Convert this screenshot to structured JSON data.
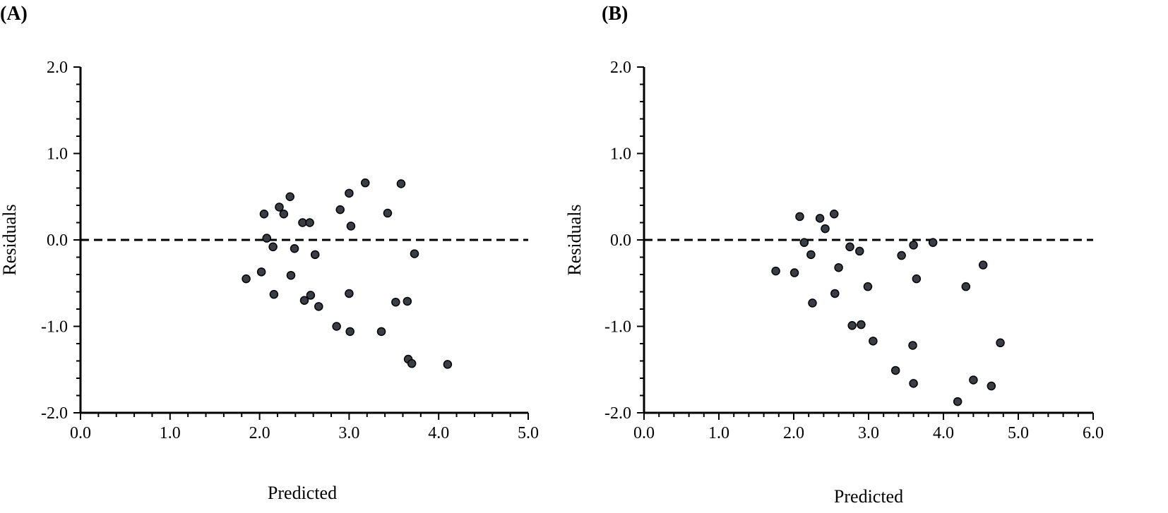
{
  "chart_data": [
    {
      "type": "scatter",
      "panel_label": "(A)",
      "xlabel": "Predicted",
      "ylabel": "Residuals",
      "xlim": [
        0,
        5
      ],
      "ylim": [
        -2,
        2
      ],
      "x_ticks": [
        "0.0",
        "1.0",
        "2.0",
        "3.0",
        "4.0",
        "5.0"
      ],
      "y_ticks": [
        "-2.0",
        "-1.0",
        "0.0",
        "1.0",
        "2.0"
      ],
      "reference_line": 0,
      "points": [
        {
          "x": 1.85,
          "y": -0.45
        },
        {
          "x": 2.02,
          "y": -0.37
        },
        {
          "x": 2.05,
          "y": 0.3
        },
        {
          "x": 2.08,
          "y": 0.02
        },
        {
          "x": 2.15,
          "y": -0.08
        },
        {
          "x": 2.16,
          "y": -0.63
        },
        {
          "x": 2.22,
          "y": 0.38
        },
        {
          "x": 2.27,
          "y": 0.3
        },
        {
          "x": 2.34,
          "y": 0.5
        },
        {
          "x": 2.35,
          "y": -0.41
        },
        {
          "x": 2.39,
          "y": -0.1
        },
        {
          "x": 2.48,
          "y": 0.2
        },
        {
          "x": 2.5,
          "y": -0.7
        },
        {
          "x": 2.56,
          "y": 0.2
        },
        {
          "x": 2.57,
          "y": -0.64
        },
        {
          "x": 2.62,
          "y": -0.17
        },
        {
          "x": 2.66,
          "y": -0.77
        },
        {
          "x": 2.86,
          "y": -1.0
        },
        {
          "x": 2.9,
          "y": 0.35
        },
        {
          "x": 3.0,
          "y": 0.54
        },
        {
          "x": 3.0,
          "y": -0.62
        },
        {
          "x": 3.01,
          "y": -1.06
        },
        {
          "x": 3.02,
          "y": 0.16
        },
        {
          "x": 3.18,
          "y": 0.66
        },
        {
          "x": 3.36,
          "y": -1.06
        },
        {
          "x": 3.43,
          "y": 0.31
        },
        {
          "x": 3.52,
          "y": -0.72
        },
        {
          "x": 3.58,
          "y": 0.65
        },
        {
          "x": 3.65,
          "y": -0.71
        },
        {
          "x": 3.66,
          "y": -1.38
        },
        {
          "x": 3.7,
          "y": -1.43
        },
        {
          "x": 3.73,
          "y": -0.16
        },
        {
          "x": 4.1,
          "y": -1.44
        }
      ]
    },
    {
      "type": "scatter",
      "panel_label": "(B)",
      "xlabel": "Predicted",
      "ylabel": "Residuals",
      "xlim": [
        0,
        6
      ],
      "ylim": [
        -2,
        2
      ],
      "x_ticks": [
        "0.0",
        "1.0",
        "2.0",
        "3.0",
        "4.0",
        "5.0",
        "6.0"
      ],
      "y_ticks": [
        "-2.0",
        "-1.0",
        "0.0",
        "1.0",
        "2.0"
      ],
      "reference_line": 0,
      "points": [
        {
          "x": 1.76,
          "y": -0.36
        },
        {
          "x": 2.01,
          "y": -0.38
        },
        {
          "x": 2.08,
          "y": 0.27
        },
        {
          "x": 2.14,
          "y": -0.03
        },
        {
          "x": 2.23,
          "y": -0.17
        },
        {
          "x": 2.25,
          "y": -0.73
        },
        {
          "x": 2.35,
          "y": 0.25
        },
        {
          "x": 2.42,
          "y": 0.13
        },
        {
          "x": 2.54,
          "y": 0.3
        },
        {
          "x": 2.55,
          "y": -0.62
        },
        {
          "x": 2.6,
          "y": -0.32
        },
        {
          "x": 2.75,
          "y": -0.08
        },
        {
          "x": 2.78,
          "y": -0.99
        },
        {
          "x": 2.88,
          "y": -0.13
        },
        {
          "x": 2.9,
          "y": -0.98
        },
        {
          "x": 2.99,
          "y": -0.54
        },
        {
          "x": 3.06,
          "y": -1.17
        },
        {
          "x": 3.36,
          "y": -1.51
        },
        {
          "x": 3.44,
          "y": -0.18
        },
        {
          "x": 3.59,
          "y": -1.22
        },
        {
          "x": 3.6,
          "y": -0.06
        },
        {
          "x": 3.6,
          "y": -1.66
        },
        {
          "x": 3.64,
          "y": -0.45
        },
        {
          "x": 3.86,
          "y": -0.03
        },
        {
          "x": 4.19,
          "y": -1.87
        },
        {
          "x": 4.3,
          "y": -0.54
        },
        {
          "x": 4.4,
          "y": -1.62
        },
        {
          "x": 4.53,
          "y": -0.29
        },
        {
          "x": 4.64,
          "y": -1.69
        },
        {
          "x": 4.76,
          "y": -1.19
        }
      ]
    }
  ]
}
